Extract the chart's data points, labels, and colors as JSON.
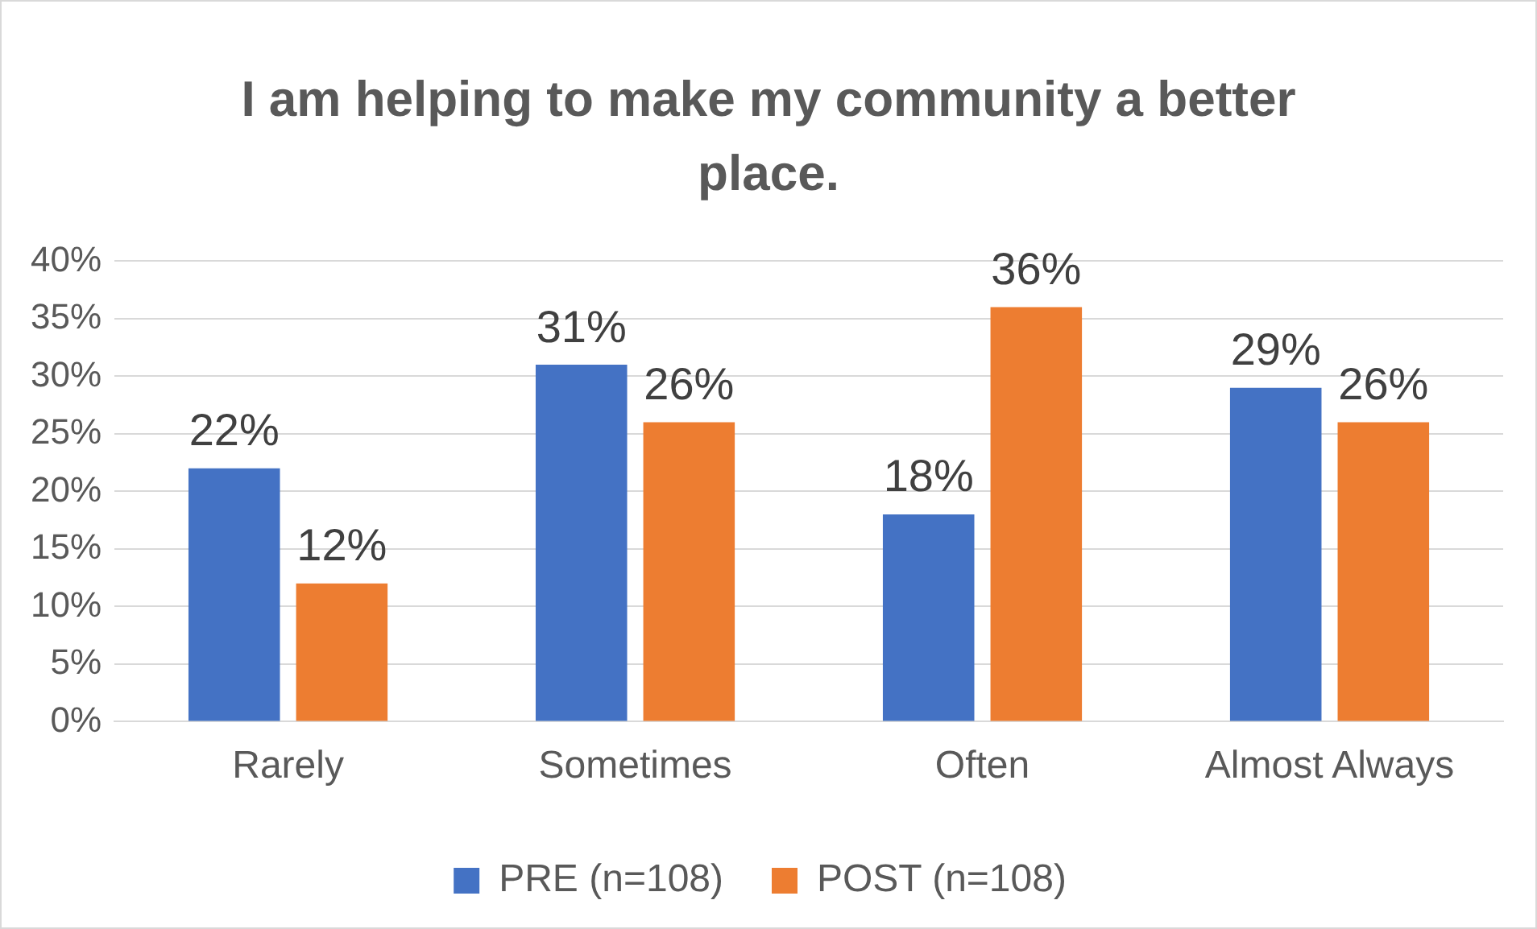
{
  "chart_data": {
    "type": "bar",
    "title": "I am helping to make my community a better place.",
    "categories": [
      "Rarely",
      "Sometimes",
      "Often",
      "Almost Always"
    ],
    "series": [
      {
        "name": "PRE (n=108)",
        "color": "#4472c4",
        "values": [
          22,
          31,
          18,
          29
        ],
        "value_labels": [
          "22%",
          "31%",
          "18%",
          "29%"
        ]
      },
      {
        "name": "POST (n=108)",
        "color": "#ed7d31",
        "values": [
          12,
          26,
          36,
          26
        ],
        "value_labels": [
          "12%",
          "26%",
          "36%",
          "26%"
        ]
      }
    ],
    "ylim": [
      0,
      40
    ],
    "yticks": [
      {
        "value": 0,
        "label": "0%"
      },
      {
        "value": 5,
        "label": "5%"
      },
      {
        "value": 10,
        "label": "10%"
      },
      {
        "value": 15,
        "label": "15%"
      },
      {
        "value": 20,
        "label": "20%"
      },
      {
        "value": 25,
        "label": "25%"
      },
      {
        "value": 30,
        "label": "30%"
      },
      {
        "value": 35,
        "label": "35%"
      },
      {
        "value": 40,
        "label": "40%"
      }
    ],
    "grid": "y",
    "legend": "bottom"
  }
}
